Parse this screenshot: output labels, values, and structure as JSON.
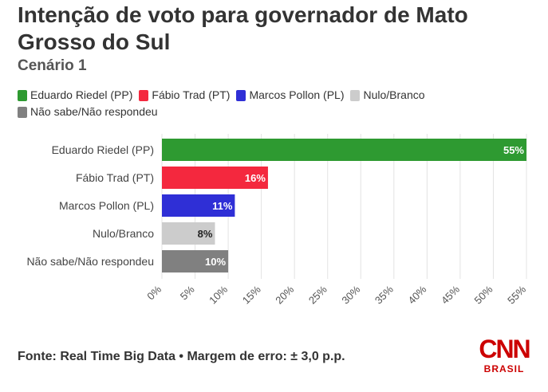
{
  "title": "Intenção de voto para governador de Mato Grosso do Sul",
  "subtitle": "Cenário 1",
  "footer": "Fonte: Real Time Big Data • Margem de erro: ± 3,0 p.p.",
  "logo": {
    "brand": "CNN",
    "sub": "BRASIL"
  },
  "chart_data": {
    "type": "bar",
    "orientation": "horizontal",
    "categories": [
      "Eduardo Riedel (PP)",
      "Fábio Trad (PT)",
      "Marcos Pollon (PL)",
      "Nulo/Branco",
      "Não sabe/Não respondeu"
    ],
    "values": [
      55,
      16,
      11,
      8,
      10
    ],
    "value_labels": [
      "55%",
      "16%",
      "11%",
      "8%",
      "10%"
    ],
    "colors": [
      "#2e9a31",
      "#f4283e",
      "#2f2fd6",
      "#cccccc",
      "#808080"
    ],
    "label_colors": [
      "#ffffff",
      "#ffffff",
      "#ffffff",
      "#222222",
      "#ffffff"
    ],
    "xlim": [
      0,
      55
    ],
    "ticks": [
      0,
      5,
      10,
      15,
      20,
      25,
      30,
      35,
      40,
      45,
      50,
      55
    ],
    "tick_labels": [
      "0%",
      "5%",
      "10%",
      "15%",
      "20%",
      "25%",
      "30%",
      "35%",
      "40%",
      "45%",
      "50%",
      "55%"
    ],
    "grid": true,
    "legend": [
      {
        "label": "Eduardo Riedel (PP)",
        "color": "#2e9a31"
      },
      {
        "label": "Fábio Trad (PT)",
        "color": "#f4283e"
      },
      {
        "label": "Marcos Pollon (PL)",
        "color": "#2f2fd6"
      },
      {
        "label": "Nulo/Branco",
        "color": "#cccccc"
      },
      {
        "label": "Não sabe/Não respondeu",
        "color": "#808080"
      }
    ]
  }
}
